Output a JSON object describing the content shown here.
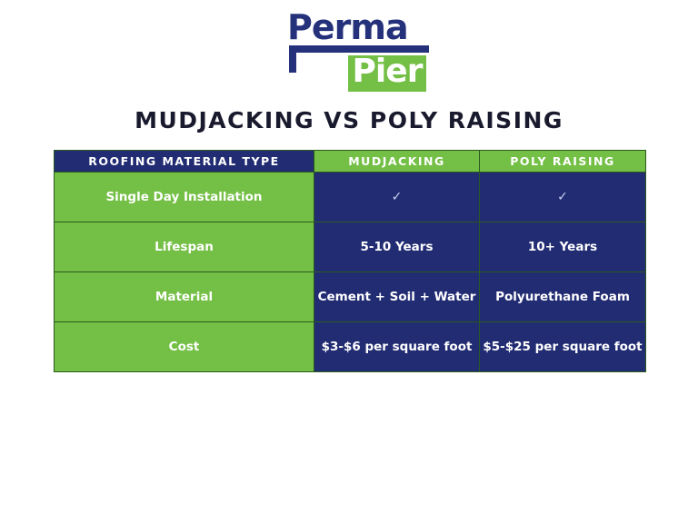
{
  "logo": {
    "line1": "Perma",
    "line2": "Pier"
  },
  "title": "MUDJACKING VS POLY RAISING",
  "table": {
    "headers": [
      "ROOFING MATERIAL TYPE",
      "MUDJACKING",
      "POLY RAISING"
    ],
    "rows": [
      [
        "Single Day Installation",
        "✓",
        "✓"
      ],
      [
        "Lifespan",
        "5-10 Years",
        "10+ Years"
      ],
      [
        "Material",
        "Cement + Soil + Water",
        "Polyurethane Foam"
      ],
      [
        "Cost",
        "$3-$6 per square foot",
        "$5-$25 per square foot"
      ]
    ]
  },
  "colors": {
    "navy": "#222c73",
    "green": "#74bf45",
    "logo_blue": "#25317a"
  },
  "icons": {
    "check": "checkmark-icon"
  }
}
